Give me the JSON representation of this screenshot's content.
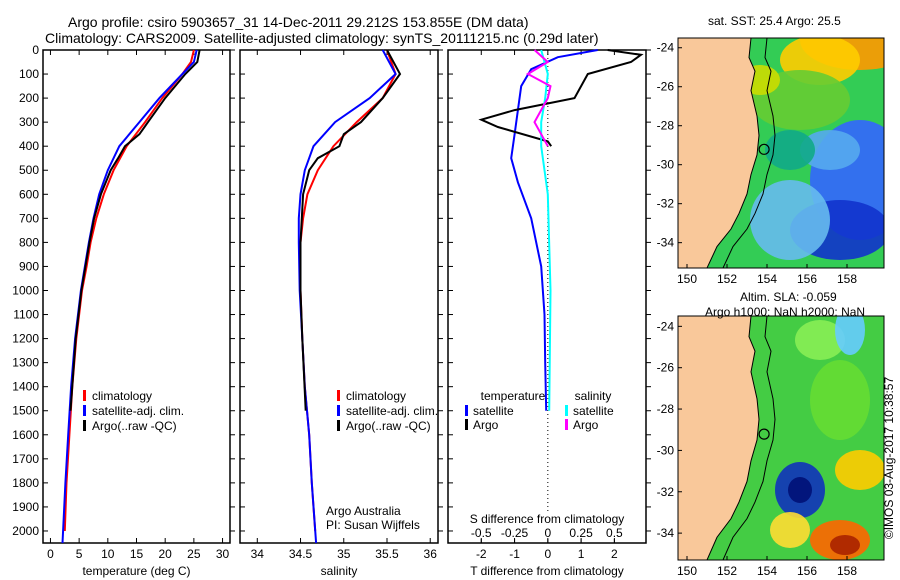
{
  "title_line1": "Argo profile: csiro 5903657_31 14-Dec-2011 29.212S 153.855E (DM data)",
  "title_line2": "Climatology: CARS2009. Satellite-adjusted climatology: synTS_20111215.nc (0.29d later)",
  "colors": {
    "climatology": "#ff0000",
    "satellite": "#0000ff",
    "argo": "#000000",
    "sal_satellite": "#00ffff",
    "sal_argo": "#ff00ff",
    "land": "#f9c89a"
  },
  "chart_data": [
    {
      "type": "line",
      "name": "temperature",
      "xlabel": "temperature (deg C)",
      "ylabel": "",
      "xlim": [
        -1.3,
        31.3
      ],
      "ylim": [
        2050,
        0
      ],
      "xticks": [
        0,
        5,
        10,
        15,
        20,
        25,
        30
      ],
      "yticks": [
        0,
        100,
        200,
        300,
        400,
        500,
        600,
        700,
        800,
        900,
        1000,
        1100,
        1200,
        1300,
        1400,
        1500,
        1600,
        1700,
        1800,
        1900,
        2000
      ],
      "legend": [
        "climatology",
        "satellite-adj. clim.",
        "Argo(..raw -QC)"
      ],
      "series": [
        {
          "name": "climatology",
          "color": "#ff0000",
          "depth": [
            0,
            50,
            100,
            200,
            300,
            400,
            500,
            600,
            700,
            800,
            900,
            1000,
            1200,
            1400,
            1600,
            1800,
            2000
          ],
          "values": [
            25,
            24.5,
            23,
            19.5,
            16.5,
            13.3,
            11,
            9.3,
            8,
            7,
            6.3,
            5.5,
            4.5,
            3.8,
            3.3,
            2.8,
            2.5
          ]
        },
        {
          "name": "satellite-adj. clim.",
          "color": "#0000ff",
          "depth": [
            0,
            50,
            100,
            200,
            300,
            400,
            500,
            600,
            700,
            800,
            900,
            1000,
            1200,
            1400,
            1600,
            1800,
            2050
          ],
          "values": [
            25.5,
            25,
            23,
            19,
            15.5,
            12,
            10,
            8.5,
            7.5,
            6.7,
            6,
            5.3,
            4.3,
            3.6,
            3.1,
            2.6,
            2.1
          ]
        },
        {
          "name": "Argo(..raw -QC)",
          "color": "#000000",
          "depth": [
            0,
            50,
            100,
            200,
            250,
            300,
            350,
            400,
            450,
            500,
            600,
            700,
            800,
            1000,
            1200,
            1500
          ],
          "values": [
            26,
            25.6,
            23.5,
            20,
            18.5,
            17,
            15.5,
            13,
            11.8,
            10.5,
            8.8,
            7.6,
            6.8,
            5.4,
            4.4,
            3.5
          ]
        }
      ]
    },
    {
      "type": "line",
      "name": "salinity",
      "xlabel": "salinity",
      "ylabel": "",
      "xlim": [
        33.8,
        36.09
      ],
      "ylim": [
        2050,
        0
      ],
      "xticks": [
        34,
        34.5,
        35,
        35.5,
        36
      ],
      "legend": [
        "climatology",
        "satellite-adj. clim.",
        "Argo(..raw -QC)"
      ],
      "annotation": [
        "Argo Australia",
        "PI: Susan Wijffels"
      ],
      "series": [
        {
          "name": "climatology",
          "color": "#ff0000",
          "depth": [
            0,
            100,
            200,
            300,
            400,
            500,
            600,
            700,
            800,
            1000,
            1200,
            1400,
            1600,
            1800,
            2000
          ],
          "values": [
            35.5,
            35.6,
            35.45,
            35.15,
            34.88,
            34.7,
            34.58,
            34.53,
            34.5,
            34.5,
            34.52,
            34.55,
            34.6,
            34.63,
            34.67
          ]
        },
        {
          "name": "satellite-adj. clim.",
          "color": "#0000ff",
          "depth": [
            0,
            100,
            200,
            300,
            400,
            500,
            600,
            700,
            800,
            1000,
            1200,
            1400,
            1600,
            1800,
            2050
          ],
          "values": [
            35.45,
            35.6,
            35.3,
            34.9,
            34.65,
            34.55,
            34.5,
            34.48,
            34.48,
            34.49,
            34.52,
            34.55,
            34.6,
            34.63,
            34.68
          ]
        },
        {
          "name": "Argo(..raw -QC)",
          "color": "#000000",
          "depth": [
            0,
            100,
            200,
            300,
            350,
            400,
            450,
            500,
            600,
            800,
            1000,
            1200,
            1500
          ],
          "values": [
            35.5,
            35.65,
            35.45,
            35.2,
            35.0,
            34.95,
            34.7,
            34.6,
            34.53,
            34.5,
            34.5,
            34.52,
            34.56
          ]
        }
      ]
    },
    {
      "type": "line",
      "name": "difference",
      "xlabel": "T difference from climatology",
      "x2label": "S difference from climatology",
      "xlim": [
        -3,
        2.95
      ],
      "ylim": [
        2050,
        0
      ],
      "xticks": [
        -2,
        -1,
        0,
        1,
        2
      ],
      "x2ticks": [
        -0.5,
        -0.25,
        0,
        0.25,
        0.5
      ],
      "legend_headers": [
        "temperature",
        "salinity"
      ],
      "legend": [
        "satellite",
        "Argo",
        "satellite",
        "Argo"
      ],
      "series": [
        {
          "name": "T satellite",
          "color": "#0000ff",
          "axis": "T",
          "depth": [
            0,
            30,
            80,
            150,
            250,
            350,
            450,
            550,
            700,
            900,
            1100,
            1300,
            1500
          ],
          "values": [
            1.5,
            0.3,
            -0.5,
            -0.8,
            -0.9,
            -1.0,
            -1.1,
            -0.9,
            -0.5,
            -0.2,
            -0.1,
            -0.08,
            -0.05
          ]
        },
        {
          "name": "T Argo",
          "color": "#000000",
          "axis": "T",
          "depth": [
            0,
            20,
            50,
            100,
            200,
            250,
            290,
            320,
            380,
            400
          ],
          "values": [
            1.8,
            2.8,
            2.5,
            1.2,
            0.8,
            -1.0,
            -2.0,
            -1.5,
            0,
            0.1
          ]
        },
        {
          "name": "S satellite",
          "color": "#00ffff",
          "axis": "S",
          "depth": [
            0,
            100,
            200,
            300,
            400,
            600,
            1000,
            1500
          ],
          "values": [
            -0.05,
            0,
            -0.02,
            -0.05,
            -0.05,
            0,
            0.02,
            0.01
          ]
        },
        {
          "name": "S Argo",
          "color": "#ff00ff",
          "axis": "S",
          "depth": [
            0,
            50,
            100,
            150,
            200,
            300,
            350,
            400
          ],
          "values": [
            -0.1,
            0,
            -0.15,
            0.02,
            0,
            -0.1,
            -0.05,
            0
          ]
        }
      ]
    }
  ],
  "map_sst": {
    "title": "sat. SST: 25.4 Argo: 25.5",
    "lon_ticks": [
      150,
      152,
      154,
      156,
      158
    ],
    "lat_ticks": [
      -24,
      -26,
      -28,
      -30,
      -32,
      -34
    ],
    "argo_lon": 153.855,
    "argo_lat": -29.212
  },
  "map_sla": {
    "title1": "Altim. SLA: -0.059",
    "title2": "Argo h1000: NaN h2000: NaN",
    "lon_ticks": [
      150,
      152,
      154,
      156,
      158
    ],
    "lat_ticks": [
      -24,
      -26,
      -28,
      -30,
      -32,
      -34
    ],
    "argo_lon": 153.855,
    "argo_lat": -29.212
  },
  "credit": "©IMOS 03-Aug-2017 10:38:57"
}
